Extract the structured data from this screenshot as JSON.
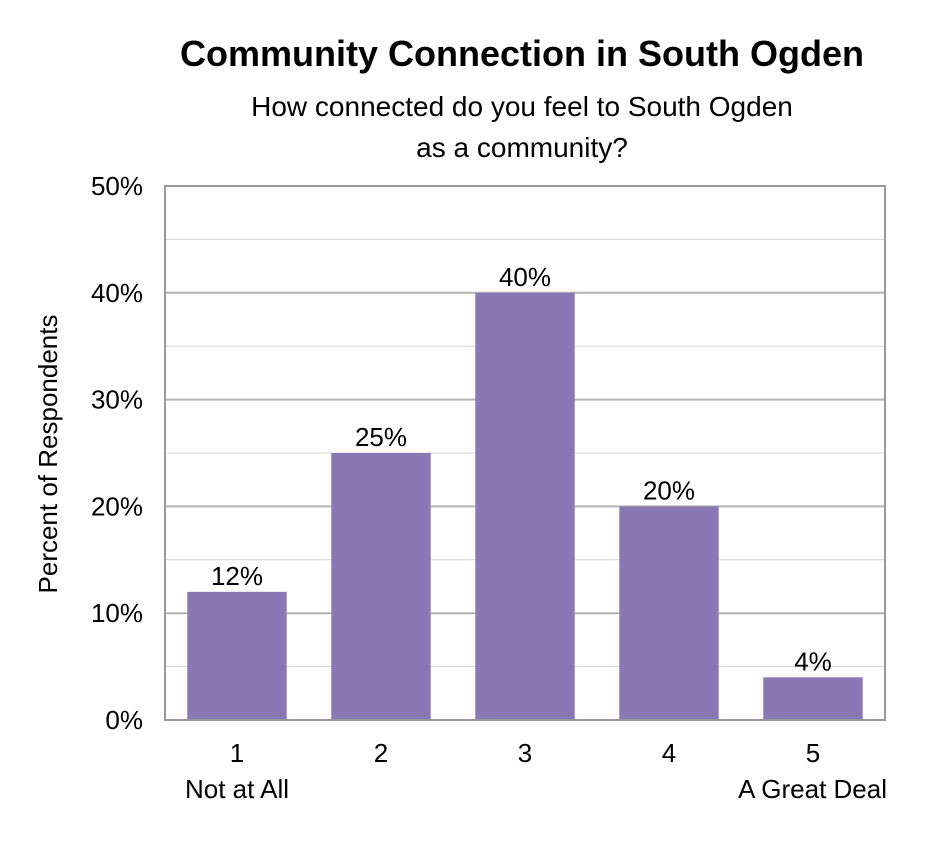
{
  "chart_data": {
    "type": "bar",
    "title": "Community Connection in South Ogden",
    "subtitle_lines": [
      "How connected do you feel to South Ogden",
      "as a community?"
    ],
    "ylabel": "Percent of Respondents",
    "xlabel": "",
    "categories": [
      "1",
      "2",
      "3",
      "4",
      "5"
    ],
    "category_sublabels": [
      "Not at All",
      "",
      "",
      "",
      "A Great Deal"
    ],
    "values": [
      12,
      25,
      40,
      20,
      4
    ],
    "data_labels": [
      "12%",
      "25%",
      "40%",
      "20%",
      "4%"
    ],
    "ylim": [
      0,
      50
    ],
    "yticks": [
      0,
      10,
      20,
      30,
      40,
      50
    ],
    "ytick_labels": [
      "0%",
      "10%",
      "20%",
      "30%",
      "40%",
      "50%"
    ],
    "grid": true,
    "legend": "none",
    "colors": {
      "bar": "#8878b4",
      "grid_major": "#b3b3b3",
      "grid_minor": "#d4d4d4",
      "plot_border": "#999999"
    }
  }
}
